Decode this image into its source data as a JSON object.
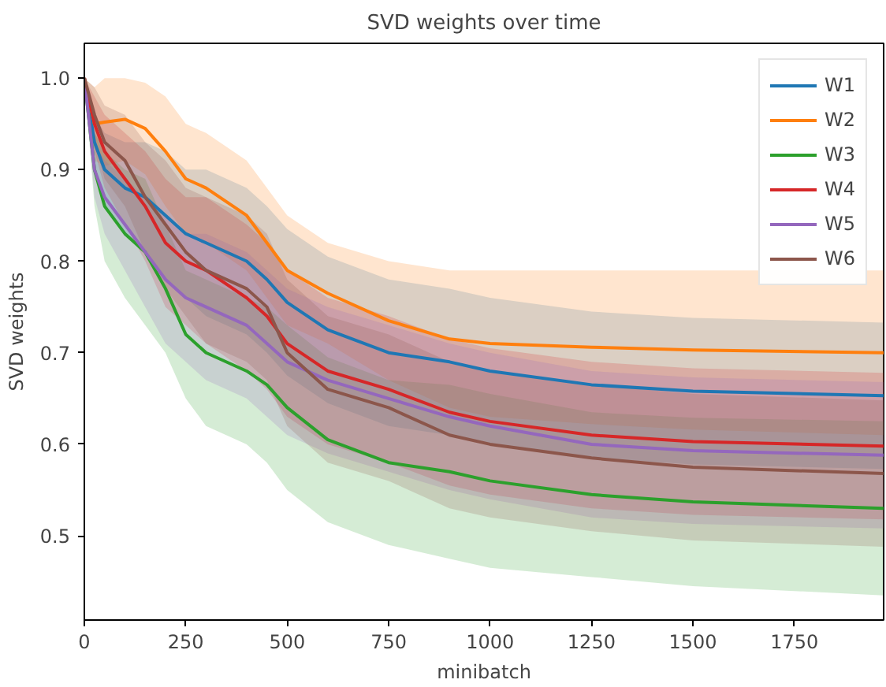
{
  "chart_data": {
    "type": "line",
    "title": "SVD weights over time",
    "xlabel": "minibatch",
    "ylabel": "SVD weights",
    "x": [
      0,
      25,
      50,
      100,
      150,
      200,
      250,
      300,
      400,
      450,
      500,
      600,
      750,
      900,
      1000,
      1250,
      1500,
      1970
    ],
    "xlim": [
      0,
      1970
    ],
    "xticks": [
      0,
      250,
      500,
      750,
      1000,
      1250,
      1500,
      1750
    ],
    "ylim": [
      0.408,
      1.038
    ],
    "yticks": [
      0.5,
      0.6,
      0.7,
      0.8,
      0.9,
      {
        "value": 1.0,
        "label": "1.0"
      }
    ],
    "grid": false,
    "legend": "top right",
    "line_style": "solid",
    "marker": "none",
    "series": [
      {
        "name": "W1",
        "color": "#1f77b4",
        "values": [
          1.0,
          0.93,
          0.9,
          0.88,
          0.87,
          0.85,
          0.83,
          0.82,
          0.8,
          0.78,
          0.755,
          0.725,
          0.7,
          0.69,
          0.68,
          0.665,
          0.658,
          0.653
        ],
        "upper": [
          1.0,
          0.96,
          0.94,
          0.93,
          0.93,
          0.92,
          0.9,
          0.9,
          0.88,
          0.86,
          0.835,
          0.805,
          0.78,
          0.77,
          0.76,
          0.745,
          0.738,
          0.733
        ],
        "lower": [
          1.0,
          0.9,
          0.86,
          0.83,
          0.81,
          0.78,
          0.76,
          0.74,
          0.72,
          0.7,
          0.675,
          0.645,
          0.62,
          0.61,
          0.6,
          0.585,
          0.578,
          0.573
        ]
      },
      {
        "name": "W2",
        "color": "#ff7f0e",
        "values": [
          1.0,
          0.95,
          0.952,
          0.955,
          0.945,
          0.92,
          0.89,
          0.88,
          0.85,
          0.82,
          0.79,
          0.765,
          0.735,
          0.715,
          0.71,
          0.706,
          0.703,
          0.7
        ],
        "upper": [
          1.0,
          0.99,
          1.0,
          1.0,
          0.995,
          0.98,
          0.95,
          0.94,
          0.91,
          0.88,
          0.85,
          0.82,
          0.8,
          0.79,
          0.79,
          0.79,
          0.79,
          0.79
        ],
        "lower": [
          1.0,
          0.91,
          0.904,
          0.91,
          0.895,
          0.86,
          0.83,
          0.82,
          0.79,
          0.76,
          0.73,
          0.71,
          0.67,
          0.64,
          0.63,
          0.622,
          0.616,
          0.61
        ]
      },
      {
        "name": "W3",
        "color": "#2ca02c",
        "values": [
          1.0,
          0.9,
          0.86,
          0.83,
          0.81,
          0.77,
          0.72,
          0.7,
          0.68,
          0.665,
          0.64,
          0.605,
          0.58,
          0.57,
          0.56,
          0.545,
          0.537,
          0.53
        ],
        "upper": [
          1.0,
          0.94,
          0.92,
          0.9,
          0.89,
          0.84,
          0.79,
          0.78,
          0.76,
          0.75,
          0.73,
          0.695,
          0.67,
          0.665,
          0.655,
          0.635,
          0.629,
          0.625
        ],
        "lower": [
          1.0,
          0.86,
          0.8,
          0.76,
          0.73,
          0.7,
          0.65,
          0.62,
          0.6,
          0.58,
          0.55,
          0.515,
          0.49,
          0.475,
          0.465,
          0.455,
          0.445,
          0.435
        ]
      },
      {
        "name": "W4",
        "color": "#d62728",
        "values": [
          1.0,
          0.95,
          0.92,
          0.89,
          0.86,
          0.82,
          0.8,
          0.79,
          0.76,
          0.74,
          0.71,
          0.68,
          0.66,
          0.635,
          0.625,
          0.61,
          0.603,
          0.598
        ],
        "upper": [
          1.0,
          0.98,
          0.96,
          0.94,
          0.92,
          0.89,
          0.87,
          0.87,
          0.84,
          0.82,
          0.79,
          0.76,
          0.74,
          0.715,
          0.705,
          0.69,
          0.683,
          0.678
        ],
        "lower": [
          1.0,
          0.92,
          0.88,
          0.84,
          0.8,
          0.75,
          0.73,
          0.71,
          0.68,
          0.66,
          0.63,
          0.6,
          0.58,
          0.555,
          0.545,
          0.53,
          0.523,
          0.518
        ]
      },
      {
        "name": "W5",
        "color": "#9467bd",
        "values": [
          1.0,
          0.9,
          0.87,
          0.84,
          0.81,
          0.78,
          0.76,
          0.75,
          0.73,
          0.71,
          0.69,
          0.67,
          0.65,
          0.63,
          0.62,
          0.6,
          0.593,
          0.588
        ],
        "upper": [
          1.0,
          0.93,
          0.91,
          0.89,
          0.87,
          0.85,
          0.83,
          0.83,
          0.81,
          0.79,
          0.77,
          0.75,
          0.73,
          0.71,
          0.7,
          0.68,
          0.673,
          0.668
        ],
        "lower": [
          1.0,
          0.87,
          0.83,
          0.79,
          0.75,
          0.71,
          0.69,
          0.67,
          0.65,
          0.63,
          0.61,
          0.59,
          0.57,
          0.55,
          0.54,
          0.52,
          0.513,
          0.508
        ]
      },
      {
        "name": "W6",
        "color": "#8c564b",
        "values": [
          1.0,
          0.96,
          0.93,
          0.91,
          0.87,
          0.84,
          0.81,
          0.79,
          0.77,
          0.75,
          0.7,
          0.66,
          0.64,
          0.61,
          0.6,
          0.585,
          0.575,
          0.568
        ],
        "upper": [
          1.0,
          0.99,
          0.97,
          0.96,
          0.93,
          0.91,
          0.88,
          0.87,
          0.85,
          0.83,
          0.78,
          0.74,
          0.72,
          0.69,
          0.68,
          0.665,
          0.655,
          0.648
        ],
        "lower": [
          1.0,
          0.93,
          0.89,
          0.86,
          0.81,
          0.77,
          0.74,
          0.71,
          0.69,
          0.67,
          0.62,
          0.58,
          0.56,
          0.53,
          0.52,
          0.505,
          0.495,
          0.488
        ]
      }
    ]
  }
}
